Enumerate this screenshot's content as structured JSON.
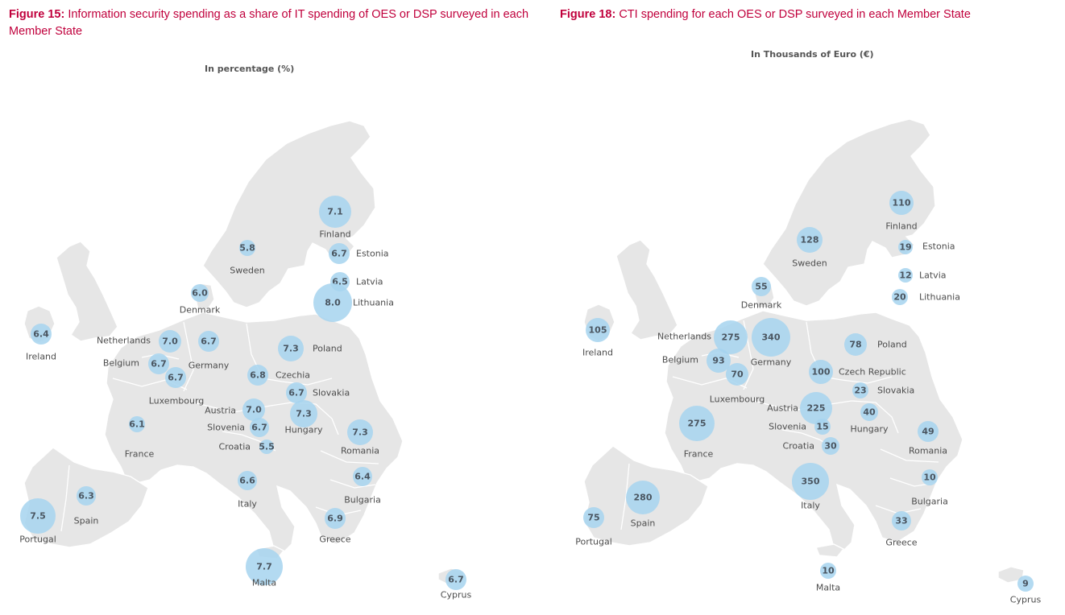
{
  "chart_data": [
    {
      "type": "bubble-map",
      "figure_label": "Figure 15:",
      "title": "Information security spending as a share of IT spending of OES or DSP surveyed in each Member State",
      "subtitle": "In percentage (%)",
      "points": [
        {
          "country": "Finland",
          "value": "7.1"
        },
        {
          "country": "Sweden",
          "value": "5.8"
        },
        {
          "country": "Estonia",
          "value": "6.7"
        },
        {
          "country": "Latvia",
          "value": "6.5"
        },
        {
          "country": "Lithuania",
          "value": "8.0"
        },
        {
          "country": "Denmark",
          "value": "6.0"
        },
        {
          "country": "Ireland",
          "value": "6.4"
        },
        {
          "country": "Netherlands",
          "value": "7.0"
        },
        {
          "country": "Belgium",
          "value": "6.7"
        },
        {
          "country": "Luxembourg",
          "value": "6.7"
        },
        {
          "country": "Germany",
          "value": "6.7"
        },
        {
          "country": "Poland",
          "value": "7.3"
        },
        {
          "country": "Czechia",
          "value": "6.8"
        },
        {
          "country": "Slovakia",
          "value": "6.7"
        },
        {
          "country": "Austria",
          "value": "7.0"
        },
        {
          "country": "Hungary",
          "value": "7.3"
        },
        {
          "country": "Slovenia",
          "value": "6.7"
        },
        {
          "country": "Croatia",
          "value": "5.5"
        },
        {
          "country": "France",
          "value": "6.1"
        },
        {
          "country": "Romania",
          "value": "7.3"
        },
        {
          "country": "Bulgaria",
          "value": "6.4"
        },
        {
          "country": "Italy",
          "value": "6.6"
        },
        {
          "country": "Spain",
          "value": "6.3"
        },
        {
          "country": "Portugal",
          "value": "7.5"
        },
        {
          "country": "Greece",
          "value": "6.9"
        },
        {
          "country": "Malta",
          "value": "7.7"
        },
        {
          "country": "Cyprus",
          "value": "6.7"
        }
      ]
    },
    {
      "type": "bubble-map",
      "figure_label": "Figure 18:",
      "title": "CTI spending for each OES or DSP surveyed in each Member State",
      "subtitle": "In Thousands of Euro (€)",
      "points": [
        {
          "country": "Finland",
          "value": "110"
        },
        {
          "country": "Sweden",
          "value": "128"
        },
        {
          "country": "Estonia",
          "value": "19"
        },
        {
          "country": "Latvia",
          "value": "12"
        },
        {
          "country": "Lithuania",
          "value": "20"
        },
        {
          "country": "Denmark",
          "value": "55"
        },
        {
          "country": "Ireland",
          "value": "105"
        },
        {
          "country": "Netherlands",
          "value": "275"
        },
        {
          "country": "Germany",
          "value": "340"
        },
        {
          "country": "Belgium",
          "value": "93"
        },
        {
          "country": "Luxembourg",
          "value": "70"
        },
        {
          "country": "Poland",
          "value": "78"
        },
        {
          "country": "Czech Republic",
          "value": "100"
        },
        {
          "country": "Slovakia",
          "value": "23"
        },
        {
          "country": "Austria",
          "value": "225"
        },
        {
          "country": "Slovenia",
          "value": "15"
        },
        {
          "country": "Hungary",
          "value": "40"
        },
        {
          "country": "Croatia",
          "value": "30"
        },
        {
          "country": "France",
          "value": "275"
        },
        {
          "country": "Romania",
          "value": "49"
        },
        {
          "country": "Bulgaria",
          "value": "10"
        },
        {
          "country": "Italy",
          "value": "350"
        },
        {
          "country": "Spain",
          "value": "280"
        },
        {
          "country": "Portugal",
          "value": "75"
        },
        {
          "country": "Greece",
          "value": "33"
        },
        {
          "country": "Malta",
          "value": "10"
        },
        {
          "country": "Cyprus",
          "value": "9"
        }
      ]
    }
  ]
}
